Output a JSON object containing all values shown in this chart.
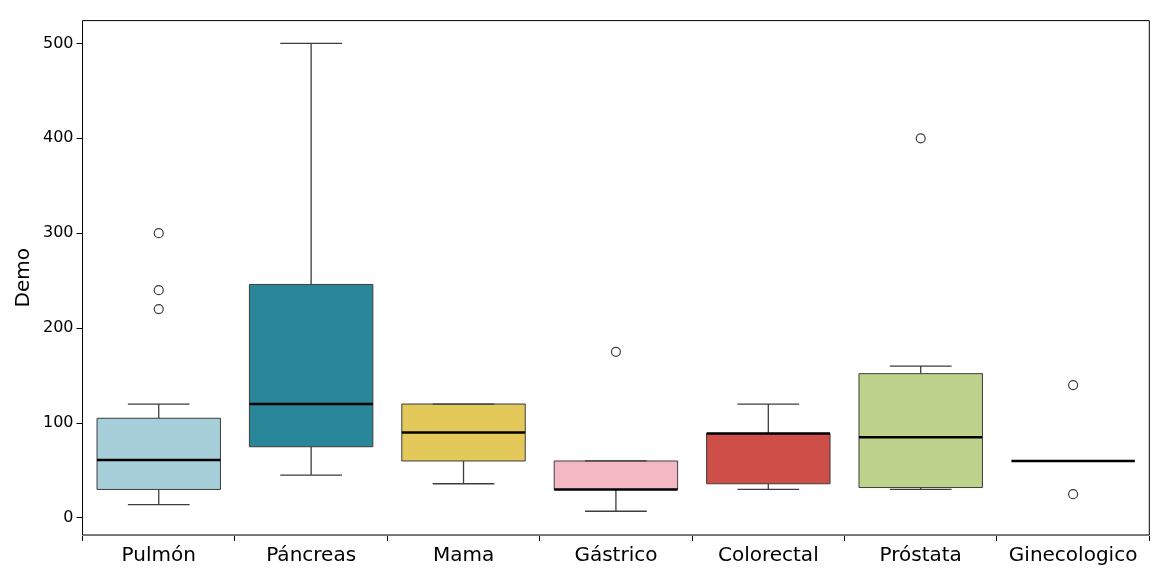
{
  "chart_data": {
    "type": "box",
    "ylabel": "Demo",
    "categories": [
      "Pulmón",
      "Páncreas",
      "Mama",
      "Gástrico",
      "Colorectal",
      "Próstata",
      "Ginecologico"
    ],
    "colors": [
      "#a6cfd9",
      "#2a8799",
      "#e2c95a",
      "#f4b8c5",
      "#cd4f48",
      "#bdd28b",
      null
    ],
    "boxes": [
      {
        "low": 14,
        "q1": 30,
        "median": 61,
        "q3": 105,
        "high": 120,
        "outliers": [
          220,
          240,
          300
        ]
      },
      {
        "low": 45,
        "q1": 75,
        "median": 120,
        "q3": 246,
        "high": 500
      },
      {
        "low": 36,
        "q1": 60,
        "median": 90,
        "q3": 120,
        "high": 120
      },
      {
        "low": 7,
        "q1": 30,
        "median": 30,
        "q3": 60,
        "high": 60,
        "outliers": [
          175
        ]
      },
      {
        "low": 30,
        "q1": 36,
        "median": 89,
        "q3": 89,
        "high": 120
      },
      {
        "low": 30,
        "q1": 32,
        "median": 85,
        "q3": 152,
        "high": 160,
        "outliers": [
          400
        ]
      },
      {
        "low": 60,
        "q1": 60,
        "median": 60,
        "q3": 60,
        "high": 60,
        "outliers": [
          140,
          25
        ]
      }
    ],
    "ylim": [
      -18,
      524
    ],
    "yticks": [
      0,
      100,
      200,
      300,
      400,
      500
    ],
    "grid": false
  }
}
